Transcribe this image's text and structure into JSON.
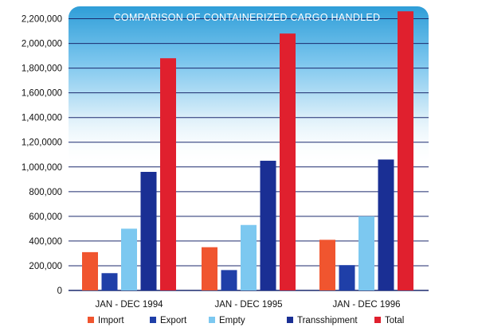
{
  "chart_data": {
    "type": "bar",
    "title": "COMPARISON OF CONTAINERIZED CARGO HANDLED",
    "categories": [
      "JAN - DEC 1994",
      "JAN - DEC 1995",
      "JAN - DEC 1996"
    ],
    "series": [
      {
        "name": "Import",
        "color": "#f0552f",
        "values": [
          310000,
          350000,
          410000
        ]
      },
      {
        "name": "Export",
        "color": "#1f3fa8",
        "values": [
          140000,
          165000,
          205000
        ]
      },
      {
        "name": "Empty",
        "color": "#7cc8f0",
        "values": [
          500000,
          530000,
          600000
        ]
      },
      {
        "name": "Transshipment",
        "color": "#1a2f94",
        "values": [
          960000,
          1050000,
          1060000
        ]
      },
      {
        "name": "Total",
        "color": "#e0202e",
        "values": [
          1880000,
          2080000,
          2260000
        ]
      }
    ],
    "yticks": [
      0,
      200000,
      400000,
      600000,
      800000,
      1000000,
      1200000,
      1400000,
      1600000,
      1800000,
      2000000,
      2200000
    ],
    "ytick_labels": [
      "0",
      "200,000",
      "400,000",
      "600,000",
      "800,000",
      "1,000,000",
      "1,20,0000",
      "1,400,000",
      "1,600,000",
      "1,800,000",
      "2,000,000",
      "2,200,000"
    ],
    "ylim": [
      0,
      2300000
    ],
    "grid": true,
    "legend_position": "bottom"
  }
}
